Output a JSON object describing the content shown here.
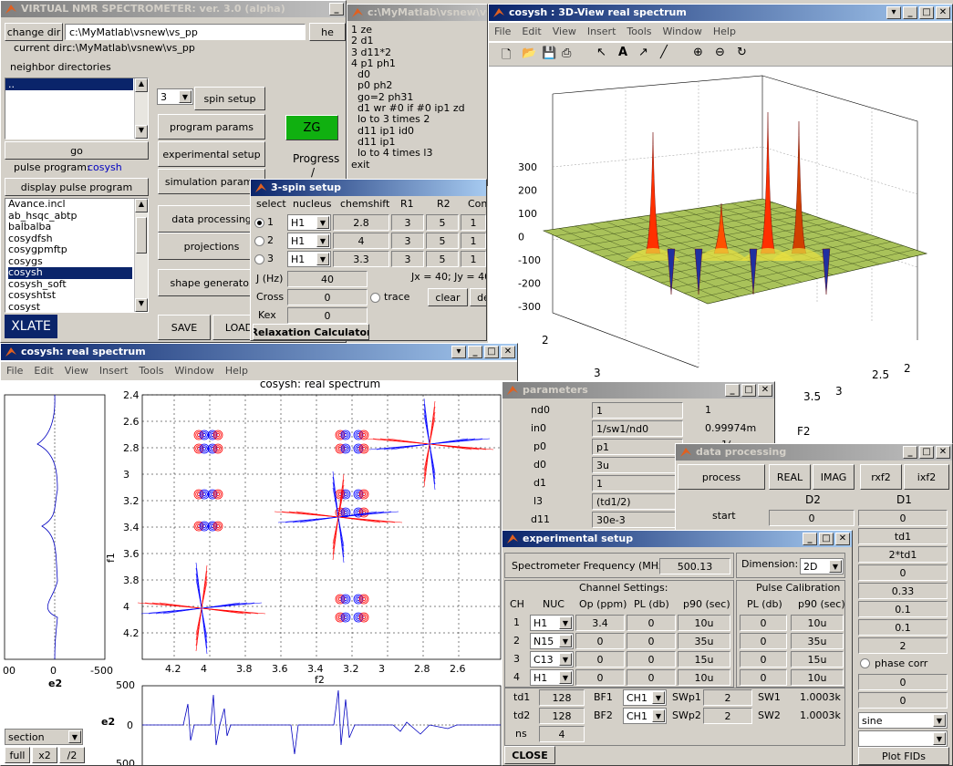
{
  "main": {
    "title": "VIRTUAL NMR SPECTROMETER: ver. 3.0 (alpha)",
    "change_dir": "change dir",
    "dir_path": "c:\\MyMatlab\\vsnew\\vs_pp",
    "current_dir_label": "current dir:",
    "current_dir": "c:\\MyMatlab\\vsnew\\vs_pp",
    "he_btn": "he",
    "neighbor_label": "neighbor directories",
    "neighbor_item": "..",
    "go": "go",
    "pulse_program_label": "pulse program:",
    "pulse_program": "cosysh",
    "display_pp": "display pulse program",
    "programs": [
      "Avance.incl",
      "ab_hsqc_abtp",
      "balbalba",
      "cosydfsh",
      "cosygpmftp",
      "cosygs",
      "cosysh",
      "cosysh_soft",
      "cosyshtst",
      "cosyst"
    ],
    "selected_program": "cosysh",
    "xlate": "XLATE",
    "spin_count": "3",
    "spin_setup": "spin setup",
    "program_params": "program params",
    "experimental_setup": "experimental setup",
    "simulation_params": "simulation params",
    "data_processing": "data processing",
    "projections": "projections",
    "shape_generator": "shape generator",
    "zg": "ZG",
    "progress": "Progress",
    "progress_value": "/",
    "save": "SAVE",
    "load": "LOAD"
  },
  "pp": {
    "title": "c:\\MyMatlab\\vsnew\\vs",
    "lines": [
      "1 ze",
      "2 d1",
      "3 d11*2",
      "4 p1 ph1",
      "  d0",
      "  p0 ph2",
      "  go=2 ph31",
      "  d1 wr #0 if #0 ip1 zd",
      "  lo to 3 times 2",
      "  d11 ip1 id0",
      "  d11 ip1",
      "  lo to 4 times l3",
      "exit"
    ]
  },
  "view3d": {
    "title": "cosysh : 3D-View real spectrum",
    "menu": [
      "File",
      "Edit",
      "View",
      "Insert",
      "Tools",
      "Window",
      "Help"
    ],
    "z_ticks": [
      "300",
      "200",
      "100",
      "0",
      "-100",
      "-200",
      "-300"
    ],
    "f1_ticks": [
      "2",
      "3"
    ],
    "f2_ticks": [
      "2",
      "2.5",
      "3",
      "3.5"
    ],
    "f2_label": "F2"
  },
  "spin": {
    "title": "3-spin setup",
    "headers": [
      "select",
      "nucleus",
      "chemshift",
      "R1",
      "R2",
      "Cons"
    ],
    "rows": [
      {
        "n": "1",
        "nuc": "H1",
        "shift": "2.8",
        "r1": "3",
        "r2": "5",
        "c": "1"
      },
      {
        "n": "2",
        "nuc": "H1",
        "shift": "4",
        "r1": "3",
        "r2": "5",
        "c": "1"
      },
      {
        "n": "3",
        "nuc": "H1",
        "shift": "3.3",
        "r1": "3",
        "r2": "5",
        "c": "1"
      }
    ],
    "j_label": "J (Hz)",
    "j_val": "40",
    "cross_label": "Cross",
    "cross_val": "0",
    "kex_label": "Kex",
    "kex_val": "0",
    "jtext": "Jx = 40; Jy = 40;",
    "trace": "trace",
    "clear": "clear",
    "de": "de",
    "relax": "Relaxation Calculator"
  },
  "real": {
    "title": "cosysh: real spectrum",
    "menu": [
      "File",
      "Edit",
      "View",
      "Insert",
      "Tools",
      "Window",
      "Help"
    ],
    "plot_title": "cosysh: real spectrum",
    "f1_ticks": [
      "2.4",
      "2.6",
      "2.8",
      "3",
      "3.2",
      "3.4",
      "3.6",
      "3.8",
      "4",
      "4.2"
    ],
    "f2_ticks": [
      "4.2",
      "4",
      "3.8",
      "3.6",
      "3.4",
      "3.2",
      "3",
      "2.8",
      "2.6"
    ],
    "f1_label": "f1",
    "f2_label": "f2",
    "e2": "e2",
    "left_ticks": [
      "00",
      "0",
      "-500"
    ],
    "bottom_y_ticks": [
      "500",
      "0",
      "500"
    ],
    "section": "section",
    "full": "full",
    "x2": "x2",
    "half": "/2"
  },
  "params": {
    "title": "parameters",
    "rows": [
      {
        "k": "nd0",
        "v": "1",
        "r": "1"
      },
      {
        "k": "in0",
        "v": "1/sw1/nd0",
        "r": "0.99974m"
      },
      {
        "k": "p0",
        "v": "p1",
        "r": ""
      },
      {
        "k": "d0",
        "v": "3u",
        "r": ""
      },
      {
        "k": "d1",
        "v": "1",
        "r": ""
      },
      {
        "k": "l3",
        "v": "(td1/2)",
        "r": ""
      },
      {
        "k": "d11",
        "v": "30e-3",
        "r": ""
      }
    ],
    "partial": "1("
  },
  "dp": {
    "title": "data processing",
    "process": "process",
    "real": "REAL",
    "imag": "IMAG",
    "rxf2": "rxf2",
    "ixf2": "ixf2",
    "d2": "D2",
    "d1": "D1",
    "start_label": "start",
    "col2": [
      "0"
    ],
    "col1": [
      "0",
      "td1",
      "2*td1",
      "0",
      "0.33",
      "0.1",
      "0.1",
      "2",
      "0",
      "0"
    ],
    "phase_corr": "phase corr",
    "window": "sine",
    "plot_fids": "Plot FIDs"
  },
  "exp": {
    "title": "experimental setup",
    "sf_label": "Spectrometer Frequency (MHz):",
    "sf": "500.13",
    "dim_label": "Dimension:",
    "dim": "2D",
    "channel_settings": "Channel Settings:",
    "pulse_cal": "Pulse Calibration",
    "col_ch": "CH",
    "col_nuc": "NUC",
    "col_op": "Op (ppm)",
    "col_pl": "PL (db)",
    "col_p90": "p90 (sec)",
    "channels": [
      {
        "ch": "1",
        "nuc": "H1",
        "op": "3.4",
        "pl": "0",
        "p90": "10u",
        "cpl": "0",
        "cp90": "10u"
      },
      {
        "ch": "2",
        "nuc": "N15",
        "op": "0",
        "pl": "0",
        "p90": "35u",
        "cpl": "0",
        "cp90": "35u"
      },
      {
        "ch": "3",
        "nuc": "C13",
        "op": "0",
        "pl": "0",
        "p90": "15u",
        "cpl": "0",
        "cp90": "15u"
      },
      {
        "ch": "4",
        "nuc": "H1",
        "op": "0",
        "pl": "0",
        "p90": "10u",
        "cpl": "0",
        "cp90": "10u"
      }
    ],
    "td1_label": "td1",
    "td1": "128",
    "td2_label": "td2",
    "td2": "128",
    "ns_label": "ns",
    "ns": "4",
    "bf1_label": "BF1",
    "bf1": "CH1",
    "bf2_label": "BF2",
    "bf2": "CH1",
    "swp1_label": "SWp1",
    "swp1": "2",
    "swp2_label": "SWp2",
    "swp2": "2",
    "sw1_label": "SW1",
    "sw1": "1.0003k",
    "sw2_label": "SW2",
    "sw2": "1.0003k",
    "close": "CLOSE"
  },
  "colors": {
    "title_active": "#0a246a",
    "xlate_bg": "#0a246a",
    "zg": "#10b010",
    "pos": "#ff0000",
    "neg": "#0000ff",
    "pp_blue": "#0000c0"
  }
}
